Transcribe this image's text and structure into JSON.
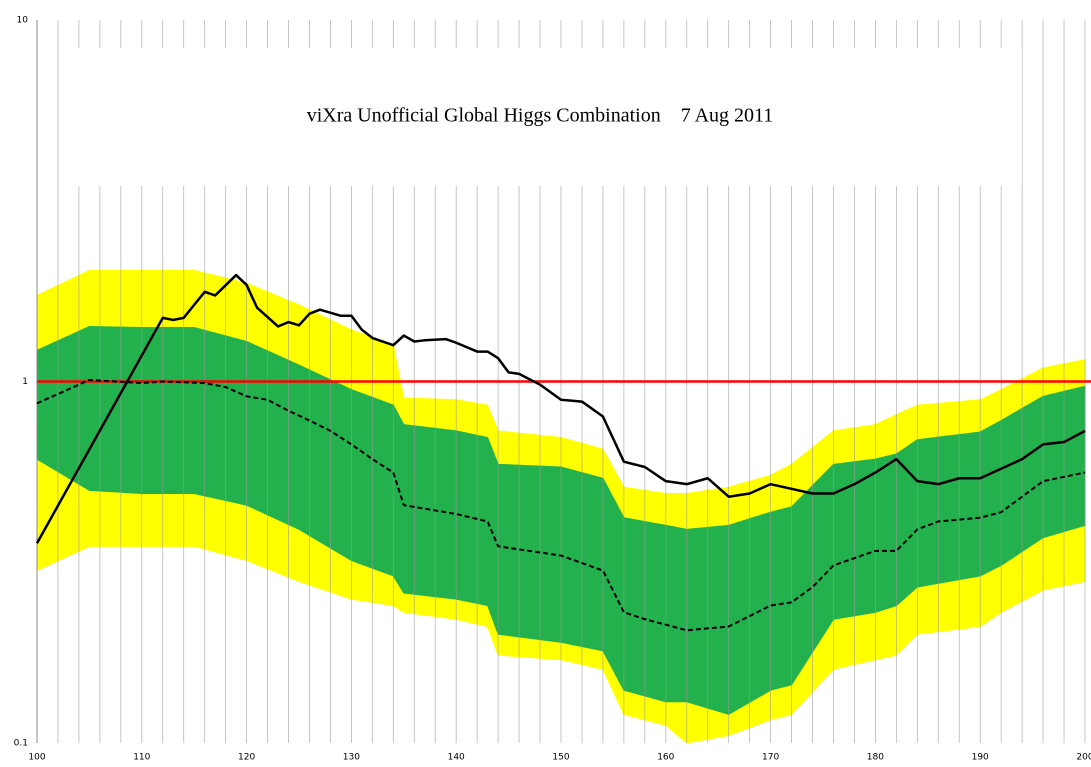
{
  "chart_data": {
    "type": "line",
    "title": "viXra Unofficial Global Higgs Combination    7 Aug 2011",
    "log_y": true,
    "xlim": [
      100,
      200
    ],
    "ylim": [
      0.1,
      10
    ],
    "xticks": [
      100,
      110,
      120,
      130,
      140,
      150,
      160,
      170,
      180,
      190,
      200
    ],
    "yticks": [
      0.1,
      1,
      10
    ],
    "x_grid": [
      100,
      102,
      104,
      106,
      108,
      110,
      112,
      114,
      116,
      118,
      120,
      122,
      124,
      126,
      128,
      130,
      132,
      134,
      136,
      138,
      140,
      142,
      144,
      146,
      148,
      150,
      152,
      154,
      156,
      158,
      160,
      162,
      164,
      166,
      168,
      170,
      172,
      174,
      176,
      178,
      180,
      182,
      184,
      186,
      188,
      190,
      192,
      194,
      196,
      198,
      200
    ],
    "bands": [
      {
        "color": "#ffff00",
        "x": [
          100,
          105,
          110,
          115,
          120,
          125,
          130,
          134,
          135,
          140,
          143,
          144,
          150,
          154,
          156,
          160,
          162,
          166,
          170,
          172,
          176,
          180,
          182,
          184,
          190,
          192,
          196,
          200
        ],
        "upper": [
          1.73,
          2.03,
          2.03,
          2.03,
          1.87,
          1.63,
          1.39,
          1.26,
          0.9,
          0.89,
          0.86,
          0.73,
          0.7,
          0.65,
          0.51,
          0.49,
          0.49,
          0.51,
          0.55,
          0.59,
          0.73,
          0.76,
          0.81,
          0.86,
          0.89,
          0.95,
          1.09,
          1.15
        ],
        "lower": [
          0.3,
          0.35,
          0.35,
          0.35,
          0.32,
          0.28,
          0.25,
          0.24,
          0.23,
          0.22,
          0.21,
          0.175,
          0.17,
          0.16,
          0.12,
          0.112,
          0.1,
          0.105,
          0.116,
          0.12,
          0.16,
          0.17,
          0.175,
          0.2,
          0.21,
          0.23,
          0.265,
          0.28
        ]
      },
      {
        "color": "#22b14c",
        "x": [
          100,
          105,
          110,
          115,
          120,
          125,
          130,
          134,
          135,
          140,
          143,
          144,
          150,
          154,
          156,
          160,
          162,
          166,
          170,
          172,
          176,
          180,
          182,
          184,
          190,
          192,
          196,
          200
        ],
        "upper": [
          1.22,
          1.42,
          1.41,
          1.41,
          1.29,
          1.11,
          0.95,
          0.86,
          0.76,
          0.73,
          0.7,
          0.59,
          0.58,
          0.54,
          0.42,
          0.4,
          0.39,
          0.4,
          0.435,
          0.45,
          0.59,
          0.61,
          0.63,
          0.69,
          0.725,
          0.78,
          0.91,
          0.97
        ],
        "lower": [
          0.61,
          0.5,
          0.49,
          0.49,
          0.455,
          0.39,
          0.32,
          0.29,
          0.26,
          0.25,
          0.24,
          0.2,
          0.19,
          0.18,
          0.14,
          0.13,
          0.13,
          0.12,
          0.14,
          0.145,
          0.22,
          0.23,
          0.24,
          0.27,
          0.29,
          0.31,
          0.37,
          0.4
        ]
      }
    ],
    "reference_lines": [
      {
        "value": 1,
        "color": "#ff0000"
      }
    ],
    "series": [
      {
        "color": "#000000",
        "style": "dashed",
        "x": [
          100,
          105,
          110,
          112,
          116,
          118,
          120,
          122,
          124,
          126,
          128,
          130,
          132,
          134,
          135,
          140,
          143,
          144,
          150,
          154,
          156,
          158,
          162,
          166,
          170,
          172,
          174,
          176,
          180,
          182,
          184,
          186,
          190,
          192,
          194,
          196,
          200
        ],
        "values": [
          0.87,
          1.01,
          0.99,
          1.0,
          0.99,
          0.965,
          0.91,
          0.89,
          0.83,
          0.78,
          0.73,
          0.67,
          0.61,
          0.56,
          0.455,
          0.43,
          0.41,
          0.35,
          0.33,
          0.3,
          0.23,
          0.22,
          0.205,
          0.21,
          0.24,
          0.245,
          0.27,
          0.31,
          0.34,
          0.34,
          0.39,
          0.41,
          0.42,
          0.435,
          0.48,
          0.53,
          0.56
        ]
      },
      {
        "color": "#000000",
        "style": "solid",
        "x": [
          100,
          112,
          113,
          114,
          116,
          117,
          119,
          120,
          121,
          123,
          124,
          125,
          126,
          127,
          129,
          130,
          131,
          132,
          134,
          135,
          136,
          137,
          139,
          140,
          142,
          143,
          144,
          145,
          146,
          148,
          150,
          152,
          154,
          156,
          158,
          160,
          162,
          164,
          166,
          168,
          170,
          174,
          176,
          178,
          180,
          182,
          184,
          186,
          188,
          190,
          194,
          196,
          198,
          200
        ],
        "values": [
          0.357,
          1.5,
          1.48,
          1.5,
          1.77,
          1.73,
          1.97,
          1.85,
          1.6,
          1.42,
          1.46,
          1.43,
          1.54,
          1.58,
          1.52,
          1.52,
          1.39,
          1.32,
          1.26,
          1.34,
          1.29,
          1.3,
          1.31,
          1.28,
          1.21,
          1.21,
          1.16,
          1.06,
          1.05,
          0.98,
          0.89,
          0.88,
          0.8,
          0.6,
          0.58,
          0.53,
          0.52,
          0.54,
          0.48,
          0.49,
          0.52,
          0.49,
          0.49,
          0.52,
          0.56,
          0.61,
          0.53,
          0.52,
          0.54,
          0.54,
          0.61,
          0.67,
          0.68,
          0.73
        ]
      }
    ]
  }
}
